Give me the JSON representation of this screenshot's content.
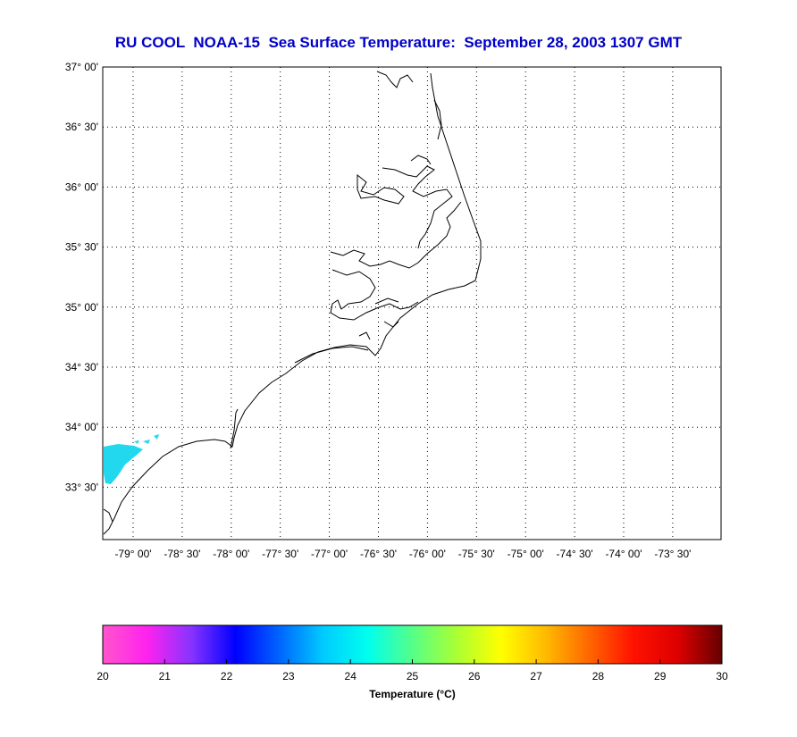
{
  "title": "RU COOL  NOAA-15  Sea Surface Temperature:  September 28, 2003 1307 GMT",
  "map": {
    "lat_labels": [
      "37° 00'",
      "36° 30'",
      "36° 00'",
      "35° 30'",
      "35° 00'",
      "34° 30'",
      "34° 00'",
      "33° 30'"
    ],
    "lon_labels": [
      "-79° 00'",
      "-78° 30'",
      "-78° 00'",
      "-77° 30'",
      "-77° 00'",
      "-76° 30'",
      "-76° 00'",
      "-75° 30'",
      "-75° 00'",
      "-74° 30'",
      "-74° 00'",
      "-73° 30'"
    ],
    "grid": "dotted",
    "coastline_color": "#000000",
    "sst_patch_color": "#22d8ee"
  },
  "colorbar": {
    "ticks": [
      "20",
      "21",
      "22",
      "23",
      "24",
      "25",
      "26",
      "27",
      "28",
      "29",
      "30"
    ],
    "label": "Temperature (°C)",
    "range": [
      20,
      30
    ],
    "stops": [
      "#ff55cc",
      "#ff22ee",
      "#8833ff",
      "#0000ff",
      "#0066ff",
      "#00ccff",
      "#00ffee",
      "#55ff88",
      "#aaff33",
      "#ffff00",
      "#ffbb00",
      "#ff6600",
      "#ff1100",
      "#dd0000",
      "#660000"
    ]
  }
}
